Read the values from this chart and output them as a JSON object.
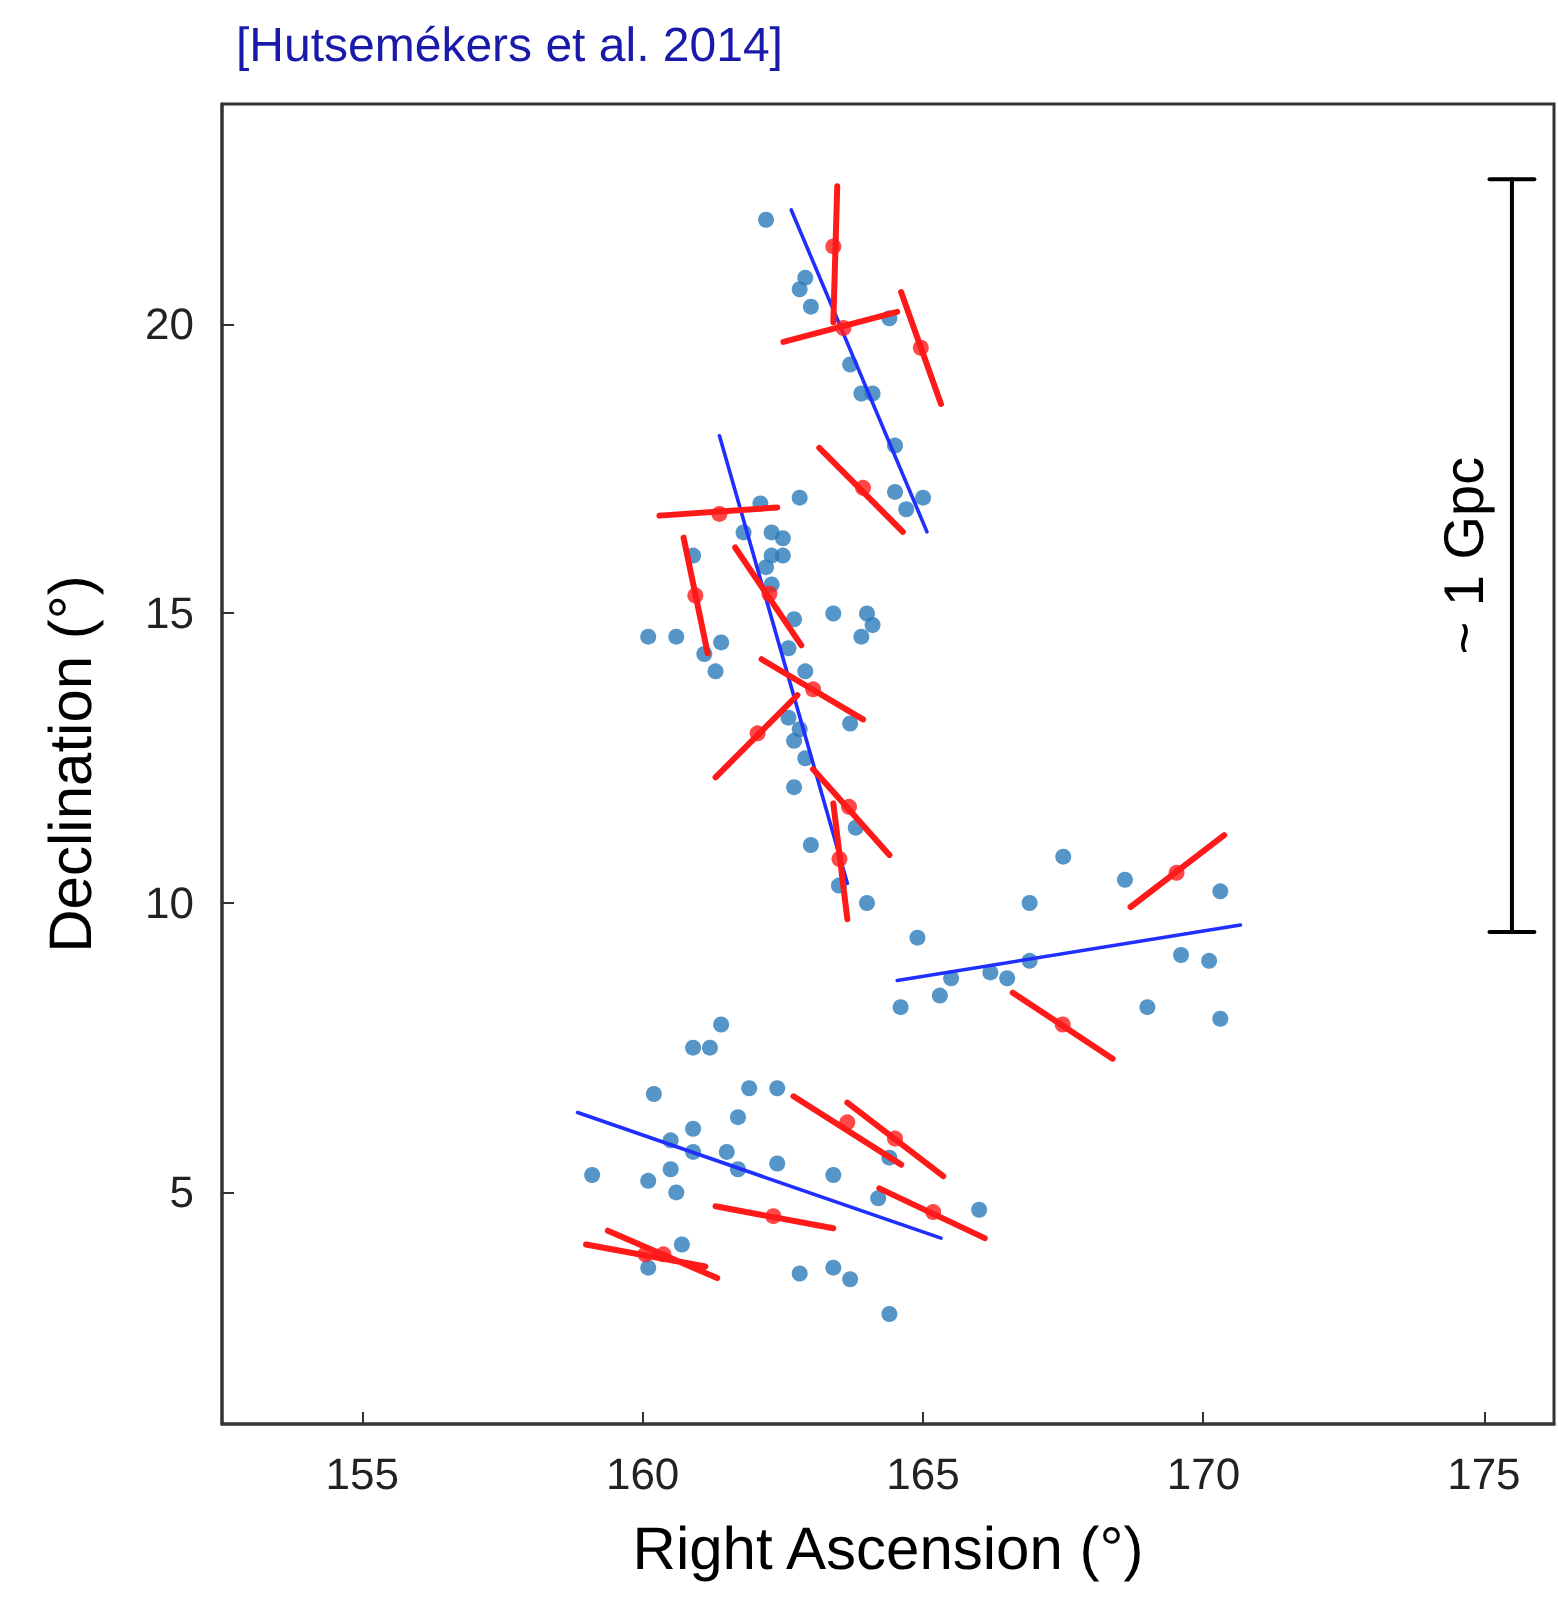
{
  "chart_data": {
    "type": "scatter",
    "title": "[Hutsemékers et al. 2014]",
    "xlabel": "Right Ascension (°)",
    "ylabel": "Declination (°)",
    "xlim": [
      152.5,
      176.25
    ],
    "ylim": [
      1,
      23.8
    ],
    "xticks": [
      155,
      160,
      165,
      170,
      175
    ],
    "yticks": [
      5,
      10,
      15,
      20
    ],
    "grid": false,
    "line_style": "solid",
    "annotations": [
      {
        "text": "~ 1 Gpc",
        "x": 175.5,
        "y": 16
      }
    ],
    "series": [
      {
        "color": "#2a7ab9",
        "marker": "circle",
        "x": [
          162.2,
          162.8,
          162.9,
          163.0,
          164.4,
          163.7,
          163.9,
          164.1,
          164.5,
          164.5,
          164.7,
          165.0,
          162.1,
          162.8,
          161.8,
          162.3,
          162.5,
          160.9,
          162.3,
          162.5,
          162.2,
          162.3,
          162.7,
          163.4,
          164.0,
          164.1,
          163.9,
          160.1,
          160.6,
          161.4,
          161.1,
          161.3,
          162.6,
          162.9,
          163.7,
          162.6,
          162.8,
          162.7,
          162.9,
          162.7,
          163.8,
          163.0,
          163.5,
          164.0,
          164.9,
          167.5,
          168.6,
          170.3,
          166.9,
          166.9,
          169.6,
          170.1,
          164.6,
          165.3,
          165.5,
          166.2,
          166.5,
          169.0,
          170.3,
          161.4,
          160.9,
          161.2,
          160.2,
          161.9,
          162.4,
          161.7,
          160.9,
          160.5,
          160.9,
          161.5,
          161.7,
          160.5,
          162.4,
          163.4,
          164.4,
          159.1,
          160.1,
          160.6,
          164.2,
          166.0,
          160.7,
          160.1,
          162.8,
          163.4,
          163.7,
          164.4
        ],
        "values": [
          21.8,
          20.6,
          20.8,
          20.3,
          20.1,
          19.3,
          18.8,
          18.8,
          17.9,
          17.1,
          16.8,
          17.0,
          16.9,
          17.0,
          16.4,
          16.4,
          16.3,
          16.0,
          16.0,
          16.0,
          15.8,
          15.5,
          14.9,
          15.0,
          15.0,
          14.8,
          14.6,
          14.6,
          14.6,
          14.5,
          14.3,
          14.0,
          14.4,
          14.0,
          13.1,
          13.2,
          13.0,
          12.8,
          12.5,
          12.0,
          11.3,
          11.0,
          10.3,
          10.0,
          9.4,
          10.8,
          10.4,
          10.2,
          10.0,
          9.0,
          9.1,
          9.0,
          8.2,
          8.4,
          8.7,
          8.8,
          8.7,
          8.2,
          8.0,
          7.9,
          7.5,
          7.5,
          6.7,
          6.8,
          6.8,
          6.3,
          6.1,
          5.9,
          5.7,
          5.7,
          5.4,
          5.4,
          5.5,
          5.3,
          5.6,
          5.3,
          5.2,
          5.0,
          4.9,
          4.7,
          4.1,
          3.7,
          3.6,
          3.7,
          3.5,
          2.9
        ]
      },
      {
        "type": "line",
        "color": "#1f2fff",
        "marker": "none",
        "x": [
          162.65,
          165.07
        ],
        "values": [
          21.97,
          16.41
        ]
      },
      {
        "type": "line",
        "color": "#1f2fff",
        "marker": "none",
        "x": [
          161.37,
          163.65
        ],
        "values": [
          18.07,
          10.34
        ]
      },
      {
        "type": "line",
        "color": "#1f2fff",
        "marker": "none",
        "x": [
          164.54,
          170.66
        ],
        "values": [
          8.66,
          9.62
        ]
      },
      {
        "type": "line",
        "color": "#1f2fff",
        "marker": "none",
        "x": [
          158.84,
          165.32
        ],
        "values": [
          6.38,
          4.21
        ]
      },
      {
        "type": "line",
        "color": "#ff1a1a",
        "marker": "none",
        "x": [
          163.47,
          163.4,
          null,
          162.51,
          164.54,
          null,
          164.61,
          165.32,
          null,
          163.15,
          164.64,
          null,
          160.3,
          162.4,
          null,
          160.73,
          161.16,
          null,
          161.65,
          162.83,
          null,
          162.12,
          163.93,
          null,
          161.3,
          162.76,
          null,
          163.04,
          164.4,
          null,
          163.4,
          163.65,
          null,
          168.7,
          170.37,
          null,
          166.6,
          168.38,
          null,
          162.69,
          164.61,
          null,
          163.65,
          165.36,
          null,
          164.22,
          166.1,
          null,
          161.3,
          163.4,
          null,
          158.99,
          161.12,
          null,
          159.38,
          161.33
        ],
        "values": [
          22.38,
          20.03,
          null,
          19.69,
          20.21,
          null,
          20.55,
          18.62,
          null,
          17.86,
          16.41,
          null,
          16.69,
          16.83,
          null,
          16.31,
          14.31,
          null,
          16.14,
          14.45,
          null,
          14.21,
          13.17,
          null,
          12.17,
          13.59,
          null,
          12.31,
          10.83,
          null,
          11.72,
          9.72,
          null,
          9.93,
          11.17,
          null,
          8.45,
          7.31,
          null,
          6.66,
          5.48,
          null,
          6.55,
          5.28,
          null,
          5.07,
          4.21,
          null,
          4.76,
          4.38,
          null,
          4.1,
          3.72,
          null,
          4.34,
          3.52
        ]
      },
      {
        "color": "#ff1a1a",
        "marker": "circle",
        "x": [
          163.4,
          163.58,
          164.96,
          163.93,
          161.37,
          160.94,
          162.26,
          163.04,
          162.05,
          163.68,
          163.51,
          169.52,
          167.49,
          163.65,
          164.5,
          165.18,
          162.33,
          160.05,
          160.37
        ],
        "values": [
          21.34,
          19.93,
          19.59,
          17.17,
          16.72,
          15.31,
          15.34,
          13.69,
          12.93,
          11.66,
          10.76,
          10.52,
          7.9,
          6.21,
          5.93,
          4.66,
          4.59,
          3.93,
          3.93
        ]
      },
      {
        "type": "line",
        "color": "#000000",
        "marker": "none",
        "x": [
          175.5,
          175.5
        ],
        "values": [
          9.5,
          22.5
        ]
      },
      {
        "type": "line",
        "color": "#000000",
        "marker": "none",
        "x": [
          175.1,
          175.9
        ],
        "values": [
          22.5,
          22.5
        ]
      },
      {
        "type": "line",
        "color": "#000000",
        "marker": "none",
        "x": [
          175.1,
          175.9
        ],
        "values": [
          9.5,
          9.5
        ]
      }
    ]
  }
}
